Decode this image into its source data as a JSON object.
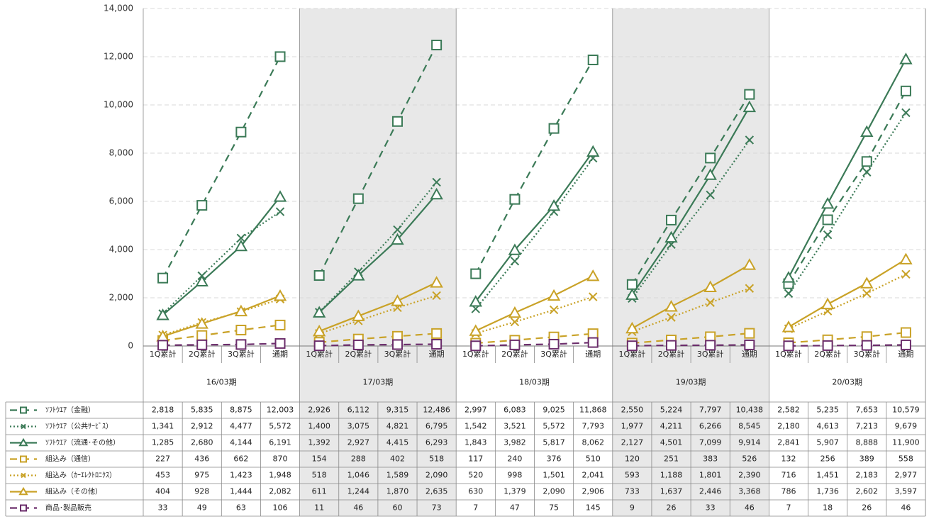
{
  "chart_data": {
    "type": "line",
    "ylim": [
      0,
      14000
    ],
    "yticks": [
      "0",
      "2,000",
      "4,000",
      "6,000",
      "8,000",
      "10,000",
      "12,000",
      "14,000"
    ],
    "periods": [
      "16/03期",
      "17/03期",
      "18/03期",
      "19/03期",
      "20/03期"
    ],
    "quarters": [
      "1Q累計",
      "2Q累計",
      "3Q累計",
      "通期"
    ],
    "colors": {
      "green": "#3b7a57",
      "gold": "#c9a227",
      "purple": "#6b2d6b",
      "shade": "#e8e8e8",
      "grid": "#d9d9d9"
    },
    "series": [
      {
        "name": "ｿﾌﾄｳｴｱ（金融）",
        "color": "#3b7a57",
        "dash": "dashed",
        "marker": "square",
        "values": [
          [
            2818,
            5835,
            8875,
            12003
          ],
          [
            2926,
            6112,
            9315,
            12486
          ],
          [
            2997,
            6083,
            9025,
            11868
          ],
          [
            2550,
            5224,
            7797,
            10438
          ],
          [
            2582,
            5235,
            7653,
            10579
          ]
        ],
        "labels": [
          [
            "2,818",
            "5,835",
            "8,875",
            "12,003"
          ],
          [
            "2,926",
            "6,112",
            "9,315",
            "12,486"
          ],
          [
            "2,997",
            "6,083",
            "9,025",
            "11,868"
          ],
          [
            "2,550",
            "5,224",
            "7,797",
            "10,438"
          ],
          [
            "2,582",
            "5,235",
            "7,653",
            "10,579"
          ]
        ]
      },
      {
        "name": "ｿﾌﾄｳｴｱ（公共ｻｰﾋﾞｽ）",
        "color": "#3b7a57",
        "dash": "dotted",
        "marker": "x",
        "values": [
          [
            1341,
            2912,
            4477,
            5572
          ],
          [
            1400,
            3075,
            4821,
            6795
          ],
          [
            1542,
            3521,
            5572,
            7793
          ],
          [
            1977,
            4211,
            6266,
            8545
          ],
          [
            2180,
            4613,
            7213,
            9679
          ]
        ],
        "labels": [
          [
            "1,341",
            "2,912",
            "4,477",
            "5,572"
          ],
          [
            "1,400",
            "3,075",
            "4,821",
            "6,795"
          ],
          [
            "1,542",
            "3,521",
            "5,572",
            "7,793"
          ],
          [
            "1,977",
            "4,211",
            "6,266",
            "8,545"
          ],
          [
            "2,180",
            "4,613",
            "7,213",
            "9,679"
          ]
        ]
      },
      {
        "name": "ｿﾌﾄｳｴｱ（流通･その他）",
        "color": "#3b7a57",
        "dash": "solid",
        "marker": "triangle",
        "values": [
          [
            1285,
            2680,
            4144,
            6191
          ],
          [
            1392,
            2927,
            4415,
            6293
          ],
          [
            1843,
            3982,
            5817,
            8062
          ],
          [
            2127,
            4501,
            7099,
            9914
          ],
          [
            2841,
            5907,
            8888,
            11900
          ]
        ],
        "labels": [
          [
            "1,285",
            "2,680",
            "4,144",
            "6,191"
          ],
          [
            "1,392",
            "2,927",
            "4,415",
            "6,293"
          ],
          [
            "1,843",
            "3,982",
            "5,817",
            "8,062"
          ],
          [
            "2,127",
            "4,501",
            "7,099",
            "9,914"
          ],
          [
            "2,841",
            "5,907",
            "8,888",
            "11,900"
          ]
        ]
      },
      {
        "name": "組込み（通信）",
        "color": "#c9a227",
        "dash": "dashed",
        "marker": "square",
        "values": [
          [
            227,
            436,
            662,
            870
          ],
          [
            154,
            288,
            402,
            518
          ],
          [
            117,
            240,
            376,
            510
          ],
          [
            120,
            251,
            383,
            526
          ],
          [
            132,
            256,
            389,
            558
          ]
        ],
        "labels": [
          [
            "227",
            "436",
            "662",
            "870"
          ],
          [
            "154",
            "288",
            "402",
            "518"
          ],
          [
            "117",
            "240",
            "376",
            "510"
          ],
          [
            "120",
            "251",
            "383",
            "526"
          ],
          [
            "132",
            "256",
            "389",
            "558"
          ]
        ]
      },
      {
        "name": "組込み（ｶｰｴﾚｸﾄﾛﾆｸｽ）",
        "color": "#c9a227",
        "dash": "dotted",
        "marker": "x",
        "values": [
          [
            453,
            975,
            1423,
            1948
          ],
          [
            518,
            1046,
            1589,
            2090
          ],
          [
            520,
            998,
            1501,
            2041
          ],
          [
            593,
            1188,
            1801,
            2390
          ],
          [
            716,
            1451,
            2183,
            2977
          ]
        ],
        "labels": [
          [
            "453",
            "975",
            "1,423",
            "1,948"
          ],
          [
            "518",
            "1,046",
            "1,589",
            "2,090"
          ],
          [
            "520",
            "998",
            "1,501",
            "2,041"
          ],
          [
            "593",
            "1,188",
            "1,801",
            "2,390"
          ],
          [
            "716",
            "1,451",
            "2,183",
            "2,977"
          ]
        ]
      },
      {
        "name": "組込み（その他）",
        "color": "#c9a227",
        "dash": "solid",
        "marker": "triangle",
        "values": [
          [
            404,
            928,
            1444,
            2082
          ],
          [
            611,
            1244,
            1870,
            2635
          ],
          [
            630,
            1379,
            2090,
            2906
          ],
          [
            733,
            1637,
            2446,
            3368
          ],
          [
            786,
            1736,
            2602,
            3597
          ]
        ],
        "labels": [
          [
            "404",
            "928",
            "1,444",
            "2,082"
          ],
          [
            "611",
            "1,244",
            "1,870",
            "2,635"
          ],
          [
            "630",
            "1,379",
            "2,090",
            "2,906"
          ],
          [
            "733",
            "1,637",
            "2,446",
            "3,368"
          ],
          [
            "786",
            "1,736",
            "2,602",
            "3,597"
          ]
        ]
      },
      {
        "name": "商品･製品販売",
        "color": "#6b2d6b",
        "dash": "dashed",
        "marker": "square",
        "values": [
          [
            33,
            49,
            63,
            106
          ],
          [
            11,
            46,
            60,
            73
          ],
          [
            7,
            47,
            75,
            145
          ],
          [
            9,
            26,
            33,
            46
          ],
          [
            7,
            18,
            26,
            46
          ]
        ],
        "labels": [
          [
            "33",
            "49",
            "63",
            "106"
          ],
          [
            "11",
            "46",
            "60",
            "73"
          ],
          [
            "7",
            "47",
            "75",
            "145"
          ],
          [
            "9",
            "26",
            "33",
            "46"
          ],
          [
            "7",
            "18",
            "26",
            "46"
          ]
        ]
      }
    ]
  }
}
